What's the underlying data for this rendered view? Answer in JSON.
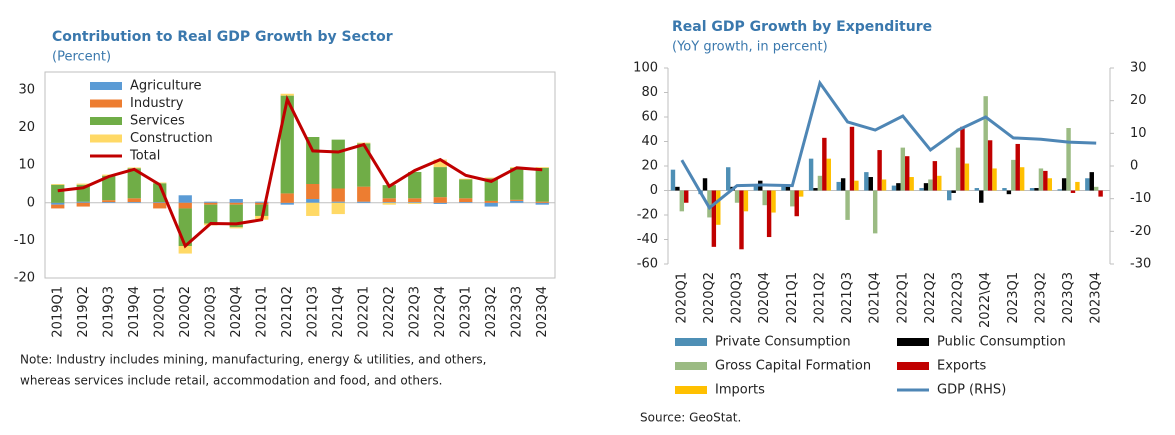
{
  "chart_data": [
    {
      "type": "bar",
      "stacked": true,
      "title": "Contribution to Real GDP Growth by Sector",
      "subtitle": "(Percent)",
      "categories": [
        "2019Q1",
        "2019Q2",
        "2019Q3",
        "2019Q4",
        "2020Q1",
        "2020Q2",
        "2020Q3",
        "2020Q4",
        "2021Q1",
        "2021Q2",
        "2021Q3",
        "2021Q4",
        "2022Q1",
        "2022Q2",
        "2022Q3",
        "2022Q4",
        "2023Q1",
        "2023Q2",
        "2023Q3",
        "2023Q4"
      ],
      "series": [
        {
          "name": "Agriculture",
          "color": "#5b9bd5",
          "values": [
            -0.5,
            0.3,
            0.2,
            0.2,
            0.2,
            2,
            0.3,
            1,
            0.3,
            -0.5,
            1,
            0.3,
            0.3,
            0.2,
            0.2,
            -0.3,
            0.2,
            -1,
            0.5,
            -0.5
          ]
        },
        {
          "name": "Industry",
          "color": "#ed7d31",
          "values": [
            -1,
            -1,
            0.5,
            1,
            -1.5,
            -1.5,
            -0.5,
            -0.5,
            -0.5,
            2.5,
            4,
            3.5,
            4,
            1,
            1,
            1.5,
            1,
            0.5,
            0.3,
            0.3
          ]
        },
        {
          "name": "Services",
          "color": "#70ad47",
          "values": [
            4.8,
            4.5,
            6.5,
            8,
            5,
            -10,
            -5,
            -6,
            -3,
            26,
            12.5,
            13,
            11.5,
            3.5,
            7,
            8,
            5,
            6,
            8.5,
            9
          ]
        },
        {
          "name": "Construction",
          "color": "#ffd966",
          "values": [
            0.2,
            0.3,
            0.3,
            0.2,
            0.2,
            -2,
            -0.5,
            -0.3,
            -1,
            0.5,
            -3.5,
            -3,
            0.2,
            -0.5,
            -0.3,
            2,
            0.2,
            0.2,
            0.2,
            0.2
          ]
        },
        {
          "name": "Total",
          "type": "line",
          "color": "#c00000",
          "values": [
            3.2,
            4,
            7,
            8.9,
            4.8,
            -11.5,
            -5.5,
            -5.6,
            -4.5,
            27.5,
            13.8,
            13.5,
            15.5,
            4.4,
            8.6,
            11.5,
            7.3,
            5.7,
            9.3,
            8.8
          ]
        }
      ],
      "ylim": [
        -20,
        30
      ],
      "yticks": [
        -20,
        -10,
        0,
        10,
        20,
        30
      ],
      "legend": "top-left"
    },
    {
      "type": "bar",
      "stacked": false,
      "title": "Real GDP Growth by Expenditure",
      "subtitle": "(YoY growth, in percent)",
      "categories": [
        "2020Q1",
        "2020Q2",
        "2020Q3",
        "2020Q4",
        "2021Q1",
        "2021Q2",
        "2021Q3",
        "2021Q4",
        "2022Q1",
        "2022Q2",
        "2022Q3",
        "2022\\Q4",
        "2023Q1",
        "2023Q2",
        "2023Q3",
        "2023Q4"
      ],
      "series": [
        {
          "name": "Private Consumption",
          "color": "#4e8fb5",
          "values": [
            17,
            -3,
            19,
            5,
            4,
            26,
            7,
            15,
            4,
            2,
            -8,
            2,
            2,
            2,
            1,
            10
          ]
        },
        {
          "name": "Public Consumption",
          "color": "#000000",
          "values": [
            3,
            10,
            3,
            8,
            4,
            2,
            10,
            11,
            6,
            6,
            -2,
            -10,
            -3,
            2,
            10,
            15
          ]
        },
        {
          "name": "Gross Capital Formation",
          "color": "#9bbb83",
          "values": [
            -17,
            -22,
            -10,
            -12,
            -13,
            12,
            -24,
            -35,
            35,
            9,
            35,
            77,
            25,
            18,
            51,
            3
          ]
        },
        {
          "name": "Exports",
          "color": "#c00000",
          "values": [
            -10,
            -46,
            -48,
            -38,
            -21,
            43,
            52,
            33,
            28,
            24,
            52,
            41,
            38,
            16,
            -2,
            -5
          ]
        },
        {
          "name": "Imports",
          "color": "#ffc000",
          "values": [
            0,
            -28,
            -17,
            -18,
            -5,
            26,
            8,
            9,
            11,
            12,
            22,
            18,
            19,
            10,
            7,
            0
          ]
        },
        {
          "name": "GDP (RHS)",
          "type": "line",
          "axis": "y2",
          "color": "#4e86b5",
          "values": [
            1.8,
            -12.8,
            -6,
            -5.8,
            -6,
            25.4,
            13.5,
            11,
            15.3,
            4.9,
            11,
            15,
            8.6,
            8.2,
            7.3,
            7
          ]
        }
      ],
      "ylim": [
        -60,
        100
      ],
      "yticks": [
        -60,
        -40,
        -20,
        0,
        20,
        40,
        60,
        80,
        100
      ],
      "y2lim": [
        -30,
        30
      ],
      "y2ticks": [
        -30,
        -20,
        -10,
        0,
        10,
        20,
        30
      ],
      "legend": "bottom"
    }
  ],
  "note": [
    "Note: Industry includes mining, manufacturing, energy & utilities, and others,",
    "whereas services include retail, accommodation and food, and others."
  ],
  "source": "Source: GeoStat."
}
